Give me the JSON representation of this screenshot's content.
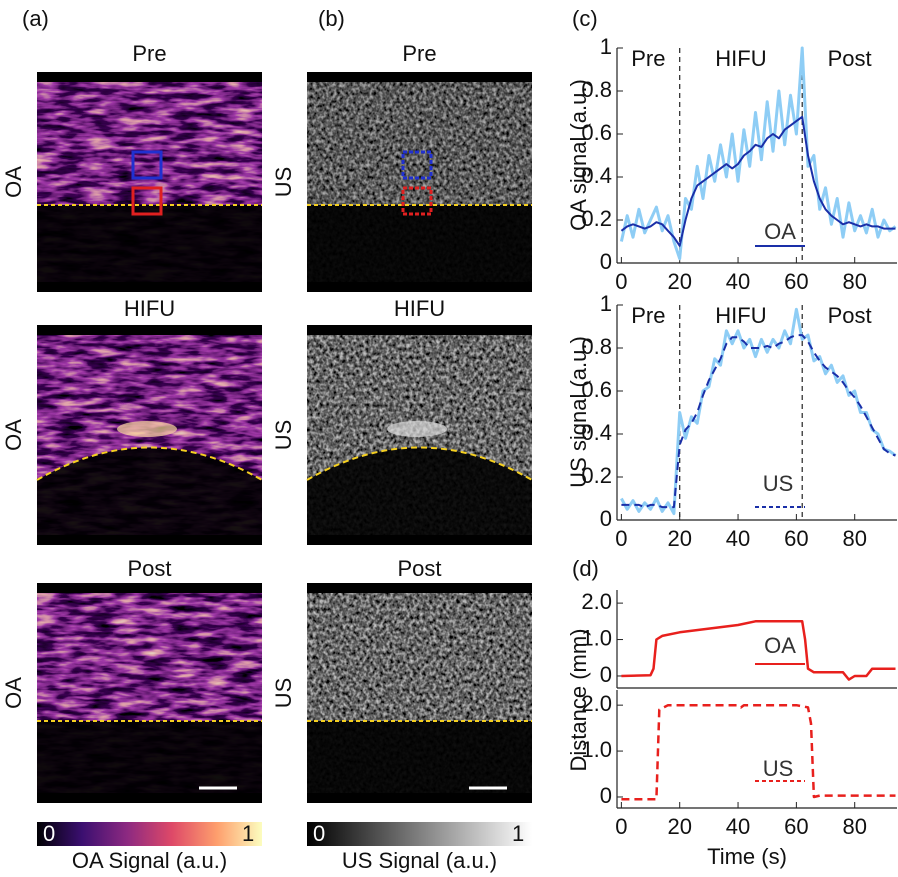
{
  "panel_labels": [
    "(a)",
    "(b)",
    "(c)",
    "(d)"
  ],
  "row_titles": [
    "Pre",
    "HIFU",
    "Post"
  ],
  "image_columns": [
    {
      "label": "OA",
      "colorbar": {
        "min": 0,
        "max": 1,
        "label": "OA Signal (a.u.)"
      }
    },
    {
      "label": "US",
      "colorbar": {
        "min": 0,
        "max": 1,
        "label": "US Signal (a.u.)"
      }
    }
  ],
  "chart_data": [
    {
      "type": "line",
      "ylabel": "OA signal (a.u.)",
      "phases": [
        "Pre",
        "HIFU",
        "Post"
      ],
      "vlines": [
        20,
        62
      ],
      "xlim": [
        -1.5,
        94.5
      ],
      "ylim": [
        0,
        1
      ],
      "xticks": [
        0,
        20,
        40,
        60,
        80
      ],
      "yticks": [
        0,
        0.2,
        0.4,
        0.6,
        0.8,
        1
      ],
      "x": [
        0,
        2,
        4,
        6,
        8,
        10,
        12,
        14,
        16,
        18,
        20,
        22,
        24,
        26,
        28,
        30,
        32,
        34,
        36,
        38,
        40,
        42,
        44,
        46,
        48,
        50,
        52,
        54,
        56,
        58,
        60,
        62,
        64,
        66,
        68,
        70,
        72,
        74,
        76,
        78,
        80,
        82,
        84,
        86,
        88,
        90,
        92,
        94
      ],
      "series": [
        {
          "color": "#8ecdf5",
          "style": "solid",
          "width": 3,
          "values": [
            0.1,
            0.22,
            0.12,
            0.25,
            0.14,
            0.2,
            0.26,
            0.15,
            0.22,
            0.1,
            0.02,
            0.3,
            0.25,
            0.45,
            0.3,
            0.5,
            0.38,
            0.55,
            0.4,
            0.6,
            0.38,
            0.62,
            0.45,
            0.7,
            0.48,
            0.75,
            0.52,
            0.8,
            0.55,
            0.78,
            0.6,
            1.0,
            0.45,
            0.5,
            0.25,
            0.35,
            0.18,
            0.3,
            0.12,
            0.28,
            0.15,
            0.22,
            0.14,
            0.25,
            0.12,
            0.2,
            0.15,
            0.17
          ]
        },
        {
          "name": "OA",
          "color": "#1a2fa8",
          "style": "solid",
          "width": 2,
          "values": [
            0.15,
            0.17,
            0.18,
            0.17,
            0.16,
            0.17,
            0.19,
            0.18,
            0.15,
            0.12,
            0.08,
            0.2,
            0.3,
            0.36,
            0.38,
            0.4,
            0.42,
            0.44,
            0.46,
            0.44,
            0.46,
            0.5,
            0.52,
            0.55,
            0.54,
            0.58,
            0.6,
            0.58,
            0.62,
            0.64,
            0.66,
            0.68,
            0.5,
            0.38,
            0.3,
            0.25,
            0.22,
            0.2,
            0.18,
            0.19,
            0.18,
            0.17,
            0.18,
            0.17,
            0.17,
            0.16,
            0.16,
            0.16
          ]
        }
      ]
    },
    {
      "type": "line",
      "ylabel": "US signal (a.u.)",
      "phases": [
        "Pre",
        "HIFU",
        "Post"
      ],
      "vlines": [
        20,
        62
      ],
      "xlim": [
        -1.5,
        94.5
      ],
      "ylim": [
        0,
        1
      ],
      "xticks": [
        0,
        20,
        40,
        60,
        80
      ],
      "yticks": [
        0,
        0.2,
        0.4,
        0.6,
        0.8,
        1
      ],
      "x": [
        0,
        2,
        4,
        6,
        8,
        10,
        12,
        14,
        16,
        18,
        20,
        22,
        24,
        26,
        28,
        30,
        32,
        34,
        36,
        38,
        40,
        42,
        44,
        46,
        48,
        50,
        52,
        54,
        56,
        58,
        60,
        62,
        64,
        66,
        68,
        70,
        72,
        74,
        76,
        78,
        80,
        82,
        84,
        86,
        88,
        90,
        92,
        94
      ],
      "series": [
        {
          "color": "#8ecdf5",
          "style": "solid",
          "width": 3,
          "values": [
            0.1,
            0.05,
            0.09,
            0.04,
            0.08,
            0.05,
            0.1,
            0.04,
            0.08,
            0.03,
            0.5,
            0.38,
            0.48,
            0.45,
            0.6,
            0.62,
            0.75,
            0.72,
            0.88,
            0.82,
            0.88,
            0.8,
            0.84,
            0.76,
            0.84,
            0.78,
            0.84,
            0.8,
            0.88,
            0.82,
            0.98,
            0.84,
            0.86,
            0.74,
            0.76,
            0.68,
            0.72,
            0.64,
            0.67,
            0.58,
            0.6,
            0.5,
            0.5,
            0.42,
            0.4,
            0.33,
            0.32,
            0.3
          ]
        },
        {
          "name": "US",
          "color": "#1a2fa8",
          "style": "dashed",
          "width": 2,
          "values": [
            0.07,
            0.07,
            0.07,
            0.07,
            0.06,
            0.07,
            0.07,
            0.06,
            0.06,
            0.06,
            0.35,
            0.42,
            0.45,
            0.5,
            0.58,
            0.65,
            0.7,
            0.75,
            0.82,
            0.85,
            0.85,
            0.83,
            0.8,
            0.8,
            0.8,
            0.81,
            0.8,
            0.82,
            0.83,
            0.85,
            0.86,
            0.86,
            0.83,
            0.78,
            0.74,
            0.71,
            0.69,
            0.67,
            0.64,
            0.6,
            0.57,
            0.53,
            0.48,
            0.43,
            0.38,
            0.33,
            0.31,
            0.3
          ]
        }
      ]
    },
    {
      "type": "line",
      "ylabel": "Distance (mm)",
      "xlim": [
        -1.5,
        94.5
      ],
      "ylim": [
        -0.33,
        2.36
      ],
      "yticks": [
        0,
        {
          "value": 1,
          "label": "1.0"
        },
        {
          "value": 2,
          "label": "2.0"
        }
      ],
      "x": [
        0,
        10,
        11,
        12,
        14,
        20,
        30,
        40,
        46,
        62,
        63,
        64,
        66,
        76,
        78,
        80,
        84,
        86,
        90,
        94
      ],
      "series": [
        {
          "name": "OA",
          "color": "#e8201d",
          "style": "solid",
          "width": 2.5,
          "values": [
            0,
            0.02,
            0.2,
            1.0,
            1.1,
            1.2,
            1.3,
            1.4,
            1.5,
            1.5,
            1.0,
            0.2,
            0.1,
            0.1,
            -0.1,
            0,
            0,
            0.2,
            0.2,
            0.2
          ]
        }
      ]
    },
    {
      "type": "line",
      "xlabel": "Time (s)",
      "xlim": [
        -1.5,
        94.5
      ],
      "ylim": [
        -0.24,
        2.33
      ],
      "xticks": [
        0,
        20,
        40,
        60,
        80
      ],
      "yticks": [
        0,
        {
          "value": 1,
          "label": "1.0"
        },
        {
          "value": 2,
          "label": "2.0"
        }
      ],
      "x": [
        0,
        12,
        13,
        16,
        40,
        41,
        42,
        60,
        64,
        65,
        66,
        68,
        94
      ],
      "series": [
        {
          "name": "US",
          "color": "#e8201d",
          "style": "dashed",
          "width": 2.5,
          "values": [
            -0.05,
            -0.05,
            1.9,
            2.0,
            2.0,
            1.95,
            2.0,
            2.0,
            1.95,
            1.6,
            0,
            0.03,
            0.03
          ]
        }
      ]
    }
  ]
}
